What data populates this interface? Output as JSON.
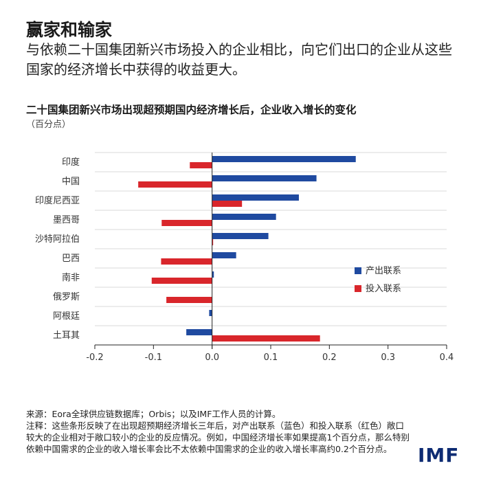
{
  "header": {
    "title": "赢家和输家",
    "subtitle": "与依赖二十国集团新兴市场投入的企业相比，向它们出口的企业从这些国家的经济增长中获得的收益更大。"
  },
  "chart_data": {
    "type": "bar",
    "orientation": "horizontal",
    "title": "二十国集团新兴市场出现超预期国内经济增长后，企业收入增长的变化",
    "unit": "（百分点）",
    "categories": [
      "印度",
      "中国",
      "印度尼西亚",
      "墨西哥",
      "沙特阿拉伯",
      "巴西",
      "南非",
      "俄罗斯",
      "阿根廷",
      "土耳其"
    ],
    "series": [
      {
        "name": "产出联系",
        "color": "#1f4aa0",
        "values": [
          0.245,
          0.178,
          0.148,
          0.109,
          0.096,
          0.041,
          0.003,
          0.0,
          -0.005,
          -0.044
        ]
      },
      {
        "name": "投入联系",
        "color": "#d9262b",
        "values": [
          -0.038,
          -0.126,
          0.051,
          -0.086,
          0.001,
          -0.087,
          -0.103,
          -0.078,
          0.0,
          0.184
        ]
      }
    ],
    "xlim": [
      -0.2,
      0.4
    ],
    "xticks": [
      "-0.2",
      "-0.1",
      "0.0",
      "0.1",
      "0.2",
      "0.3",
      "0.4"
    ],
    "legend_position": "right-middle",
    "grid": "horizontal"
  },
  "notes": {
    "source": "来源：Eora全球供应链数据库；Orbis；以及IMF工作人员的计算。",
    "note": "注释：这些条形反映了在出现超预期经济增长三年后，对产出联系（蓝色）和投入联系（红色）敞口较大的企业相对于敞口较小的企业的反应情况。例如，中国经济增长率如果提高1个百分点，那么特别依赖中国需求的企业的收入增长率会比不太依赖中国需求的企业的收入增长率高约0.2个百分点。"
  },
  "logo": "IMF"
}
